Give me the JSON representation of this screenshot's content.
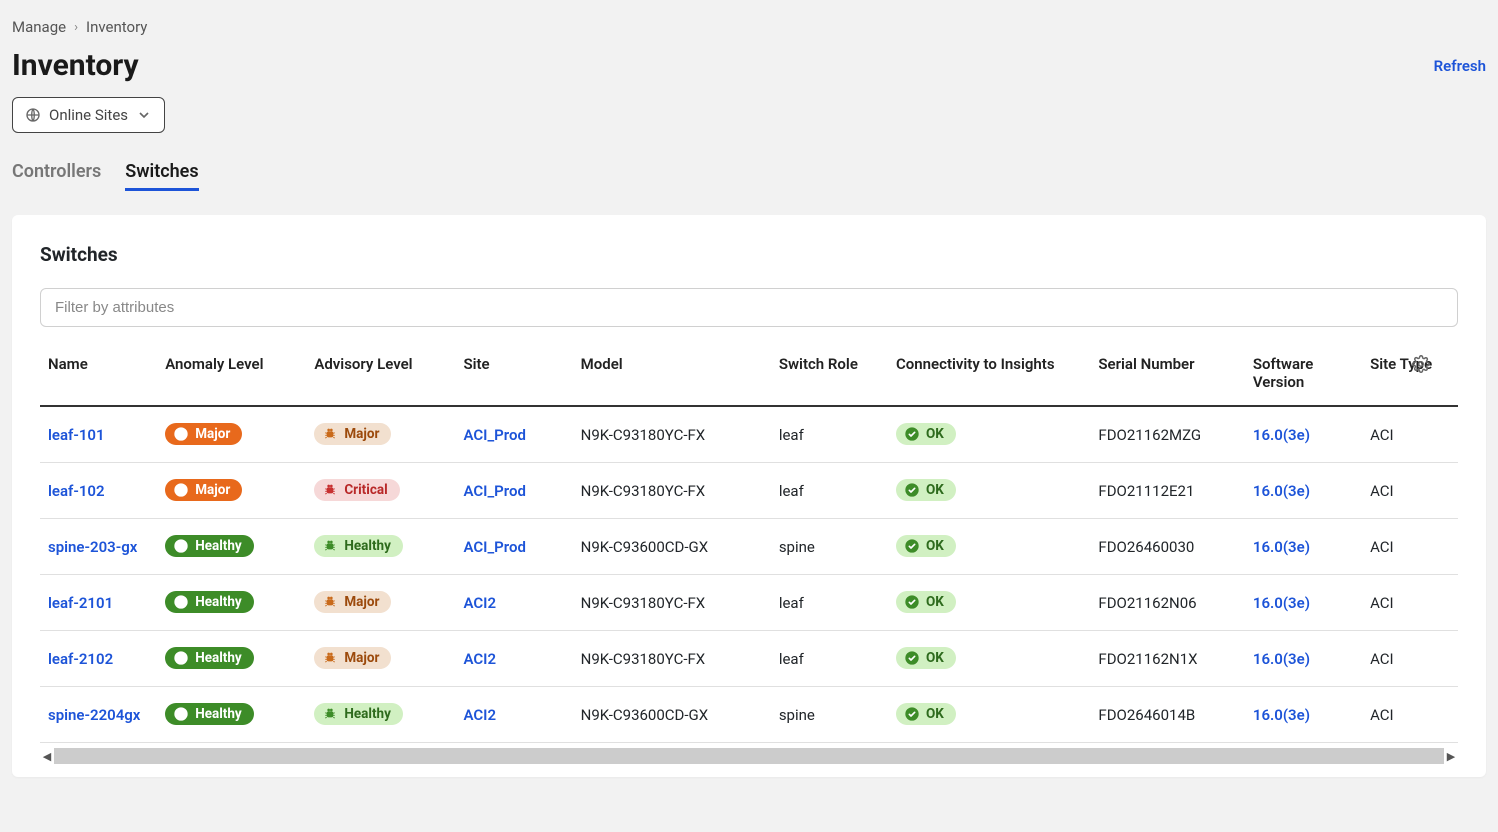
{
  "breadcrumb": {
    "item1": "Manage",
    "item2": "Inventory"
  },
  "title": "Inventory",
  "refresh_label": "Refresh",
  "site_filter": {
    "label": "Online Sites"
  },
  "tabs": {
    "controllers": "Controllers",
    "switches": "Switches",
    "active": "switches"
  },
  "card_title": "Switches",
  "filter_placeholder": "Filter by attributes",
  "columns": {
    "name": "Name",
    "anomaly": "Anomaly Level",
    "advisory": "Advisory Level",
    "site": "Site",
    "model": "Model",
    "role": "Switch Role",
    "connectivity": "Connectivity to Insights",
    "serial": "Serial Number",
    "version": "Software Version",
    "site_type": "Site Type"
  },
  "badge_colors": {
    "Major_anomaly": "badge-orange",
    "Healthy_anomaly": "badge-green",
    "Major_advisory": "badge-lightorange",
    "Critical_advisory": "badge-lightred",
    "Healthy_advisory": "badge-lightgreen",
    "OK": "badge-ok"
  },
  "rows": [
    {
      "name": "leaf-101",
      "anomaly": "Major",
      "advisory": "Major",
      "site": "ACI_Prod",
      "model": "N9K-C93180YC-FX",
      "role": "leaf",
      "connectivity": "OK",
      "serial": "FDO21162MZG",
      "version": "16.0(3e)",
      "site_type": "ACI"
    },
    {
      "name": "leaf-102",
      "anomaly": "Major",
      "advisory": "Critical",
      "site": "ACI_Prod",
      "model": "N9K-C93180YC-FX",
      "role": "leaf",
      "connectivity": "OK",
      "serial": "FDO21112E21",
      "version": "16.0(3e)",
      "site_type": "ACI"
    },
    {
      "name": "spine-203-gx",
      "anomaly": "Healthy",
      "advisory": "Healthy",
      "site": "ACI_Prod",
      "model": "N9K-C93600CD-GX",
      "role": "spine",
      "connectivity": "OK",
      "serial": "FDO26460030",
      "version": "16.0(3e)",
      "site_type": "ACI"
    },
    {
      "name": "leaf-2101",
      "anomaly": "Healthy",
      "advisory": "Major",
      "site": "ACI2",
      "model": "N9K-C93180YC-FX",
      "role": "leaf",
      "connectivity": "OK",
      "serial": "FDO21162N06",
      "version": "16.0(3e)",
      "site_type": "ACI"
    },
    {
      "name": "leaf-2102",
      "anomaly": "Healthy",
      "advisory": "Major",
      "site": "ACI2",
      "model": "N9K-C93180YC-FX",
      "role": "leaf",
      "connectivity": "OK",
      "serial": "FDO21162N1X",
      "version": "16.0(3e)",
      "site_type": "ACI"
    },
    {
      "name": "spine-2204gx",
      "anomaly": "Healthy",
      "advisory": "Healthy",
      "site": "ACI2",
      "model": "N9K-C93600CD-GX",
      "role": "spine",
      "connectivity": "OK",
      "serial": "FDO2646014B",
      "version": "16.0(3e)",
      "site_type": "ACI"
    }
  ]
}
